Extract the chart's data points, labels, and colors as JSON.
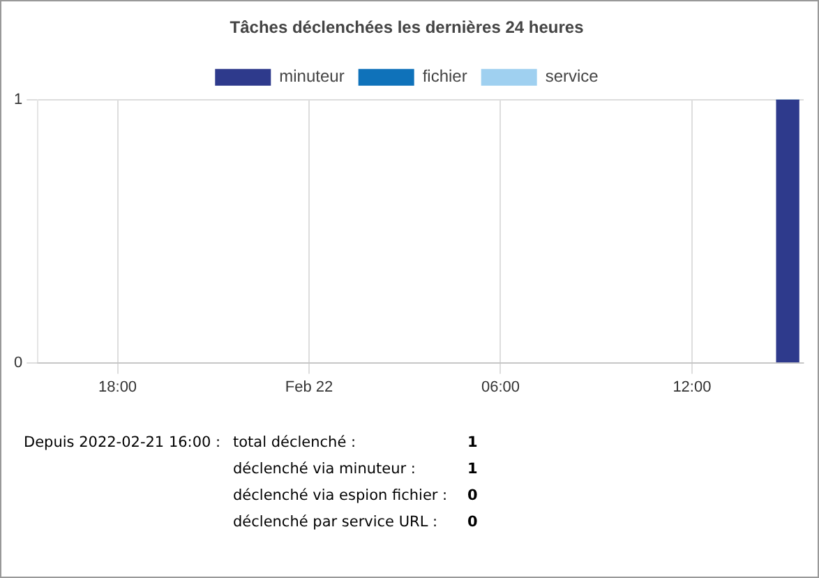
{
  "chart_data": {
    "type": "bar",
    "stacked": true,
    "title": "Tâches déclenchées les dernières 24 heures",
    "x": [
      "2022-02-22T15:00"
    ],
    "series": [
      {
        "name": "minuteur",
        "color": "#2e3a8c",
        "values": [
          1
        ]
      },
      {
        "name": "fichier",
        "color": "#0f72ba",
        "values": [
          0
        ]
      },
      {
        "name": "service",
        "color": "#9fd0f0",
        "values": [
          0
        ]
      }
    ],
    "xlim": [
      "2022-02-21T15:30",
      "2022-02-22T15:30"
    ],
    "xticks": [
      {
        "value": "2022-02-21T18:00",
        "label": "18:00"
      },
      {
        "value": "2022-02-22T00:00",
        "label": "Feb 22"
      },
      {
        "value": "2022-02-22T06:00",
        "label": "06:00"
      },
      {
        "value": "2022-02-22T12:00",
        "label": "12:00"
      }
    ],
    "ylim": [
      0,
      1
    ],
    "yticks": [
      0,
      1
    ],
    "grid": true,
    "legend": "top",
    "annotations": [
      "Depuis 2022-02-21 16:00 :",
      "total déclenché :",
      "1",
      "déclenché via minuteur :",
      "1",
      "déclenché via espion fichier :",
      "0",
      "déclenché par service URL :",
      "0"
    ]
  }
}
